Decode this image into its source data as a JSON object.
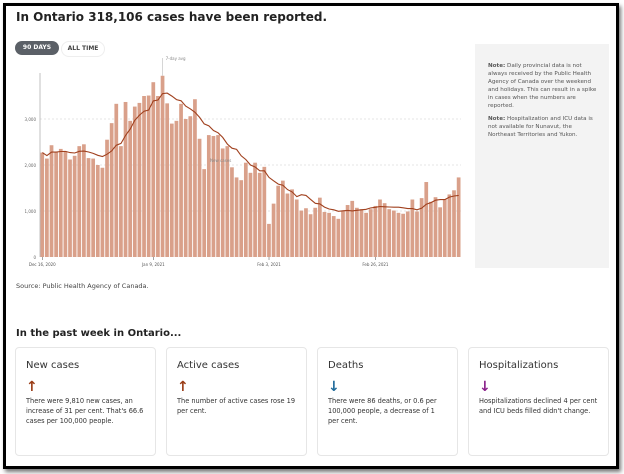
{
  "title": "In Ontario 318,106 cases have been reported.",
  "buttons": {
    "days90": "90 DAYS",
    "all_time": "ALL TIME"
  },
  "chart_data": {
    "type": "bar",
    "series": [
      {
        "name": "New cases",
        "values": [
          2270,
          2140,
          2430,
          2280,
          2350,
          2300,
          2120,
          2200,
          2410,
          2450,
          2150,
          2140,
          2000,
          1940,
          2550,
          2910,
          3330,
          2410,
          3370,
          2960,
          3270,
          3350,
          3500,
          3510,
          3800,
          3500,
          3940,
          3340,
          2900,
          2960,
          3330,
          3000,
          3060,
          3430,
          2570,
          1910,
          2650,
          2630,
          2650,
          2360,
          2410,
          1950,
          1730,
          1670,
          2050,
          1830,
          2050,
          1830,
          1960,
          720,
          1160,
          1550,
          1660,
          1380,
          1470,
          1250,
          1010,
          1060,
          930,
          1070,
          1290,
          980,
          960,
          890,
          830,
          1010,
          1130,
          1220,
          1070,
          1040,
          960,
          1040,
          1110,
          1250,
          1170,
          1040,
          1010,
          960,
          940,
          990,
          1250,
          990,
          1280,
          1630,
          1200,
          1300,
          1080,
          1260,
          1360,
          1450,
          1730
        ]
      }
    ],
    "line": {
      "name": "7-day avg",
      "type": "7-day rolling average"
    },
    "x_ticks": [
      {
        "label": "Dec 16, 2020",
        "index": 0
      },
      {
        "label": "Jan 9, 2021",
        "index": 24
      },
      {
        "label": "Feb 3, 2021",
        "index": 49
      },
      {
        "label": "Feb 26, 2021",
        "index": 72
      }
    ],
    "y_ticks": [
      {
        "value": 0,
        "label": "0"
      },
      {
        "value": 1000,
        "label": "1,000"
      },
      {
        "value": 2000,
        "label": "2,000"
      },
      {
        "value": 3000,
        "label": "3,000"
      }
    ],
    "ylim": [
      0,
      4000
    ],
    "grid": true,
    "annotations": [
      "7-day avg",
      "New cases"
    ],
    "colors": {
      "bar": "#d9a08a",
      "line": "#a0401e"
    }
  },
  "notes": [
    {
      "label": "Note:",
      "text": " Daily provincial data is not always received by the Public Health Agency of Canada over the weekend and holidays. This can result in a spike in cases when the numbers are reported."
    },
    {
      "label": "Note:",
      "text": " Hospitalization and ICU data is not available for Nunavut, the Northeast Territories and Yukon."
    }
  ],
  "source": "Source: Public Health Agency of Canada.",
  "week_heading": "In the past week in Ontario...",
  "cards": [
    {
      "title": "New cases",
      "arrow": "↑",
      "icon": "arrow-up-icon",
      "color": "#9a3d17",
      "text": "There were 9,810 new cases, an increase of 31 per cent. That's 66.6 cases per 100,000 people."
    },
    {
      "title": "Active cases",
      "arrow": "↑",
      "icon": "arrow-up-icon",
      "color": "#9a3d17",
      "text": "The number of active cases rose 19 per cent."
    },
    {
      "title": "Deaths",
      "arrow": "↓",
      "icon": "arrow-down-icon",
      "color": "#1e6a9a",
      "text": "There were 86 deaths, or 0.6 per 100,000 people, a decrease of 1 per cent."
    },
    {
      "title": "Hospitalizations",
      "arrow": "↓",
      "icon": "arrow-down-icon",
      "color": "#8a1f8a",
      "text": "Hospitalizations declined 4 per cent and ICU beds filled didn't change."
    }
  ]
}
